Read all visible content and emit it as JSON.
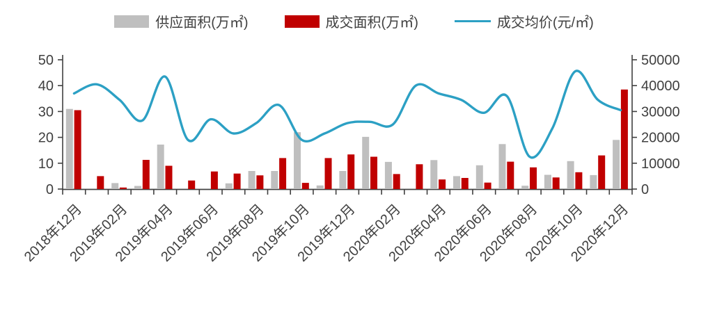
{
  "legend": {
    "items": [
      {
        "label": "供应面积(万㎡)",
        "color": "#BFBFBF",
        "swatch": "bar"
      },
      {
        "label": "成交面积(万㎡)",
        "color": "#C00000",
        "swatch": "bar"
      },
      {
        "label": "成交均价(元/㎡)",
        "color": "#2CA0C4",
        "swatch": "line"
      }
    ]
  },
  "chart_data": {
    "type": "combo-bar-line",
    "title": "",
    "categories": [
      "2018年12月",
      "2019年01月",
      "2019年02月",
      "2019年03月",
      "2019年04月",
      "2019年05月",
      "2019年06月",
      "2019年07月",
      "2019年08月",
      "2019年09月",
      "2019年10月",
      "2019年11月",
      "2019年12月",
      "2020年01月",
      "2020年02月",
      "2020年03月",
      "2020年04月",
      "2020年05月",
      "2020年06月",
      "2020年07月",
      "2020年08月",
      "2020年09月",
      "2020年10月",
      "2020年11月",
      "2020年12月"
    ],
    "x_tick_labels_shown": [
      "2018年12月",
      "2019年02月",
      "2019年04月",
      "2019年06月",
      "2019年08月",
      "2019年10月",
      "2019年12月",
      "2020年02月",
      "2020年04月",
      "2020年06月",
      "2020年08月",
      "2020年10月",
      "2020年12月"
    ],
    "series": [
      {
        "name": "供应面积(万㎡)",
        "type": "bar",
        "axis": "left",
        "color": "#BFBFBF",
        "values": [
          31,
          0,
          2.3,
          1.2,
          17.2,
          0,
          0,
          2.2,
          7,
          7,
          22,
          1.4,
          7,
          20.2,
          10.5,
          0,
          11.2,
          5,
          9.2,
          17.4,
          1.3,
          5.5,
          10.8,
          5.4,
          19
        ]
      },
      {
        "name": "成交面积(万㎡)",
        "type": "bar",
        "axis": "left",
        "color": "#C00000",
        "values": [
          30.5,
          5,
          0.6,
          11.3,
          9,
          3.3,
          6.8,
          6,
          5.3,
          12,
          2.4,
          12,
          13.4,
          12.5,
          5.8,
          9.6,
          3.7,
          4.3,
          2.5,
          10.6,
          8.4,
          4.5,
          6.5,
          13,
          38.5
        ]
      },
      {
        "name": "成交均价(元/㎡)",
        "type": "line",
        "axis": "right",
        "color": "#2CA0C4",
        "values": [
          37000,
          40500,
          34500,
          26500,
          43500,
          19000,
          27000,
          21500,
          25500,
          32500,
          19000,
          21500,
          25500,
          26000,
          25000,
          40000,
          37000,
          34500,
          29500,
          36000,
          12500,
          23500,
          45500,
          34500,
          30500
        ]
      }
    ],
    "left_axis": {
      "min": 0,
      "max": 50,
      "step": 10,
      "tick_labels": [
        "0",
        "10",
        "20",
        "30",
        "40",
        "50"
      ]
    },
    "right_axis": {
      "min": 0,
      "max": 50000,
      "step": 10000,
      "tick_labels": [
        "0",
        "10000",
        "20000",
        "30000",
        "40000",
        "50000"
      ]
    },
    "grid": false,
    "legend_position": "top"
  }
}
